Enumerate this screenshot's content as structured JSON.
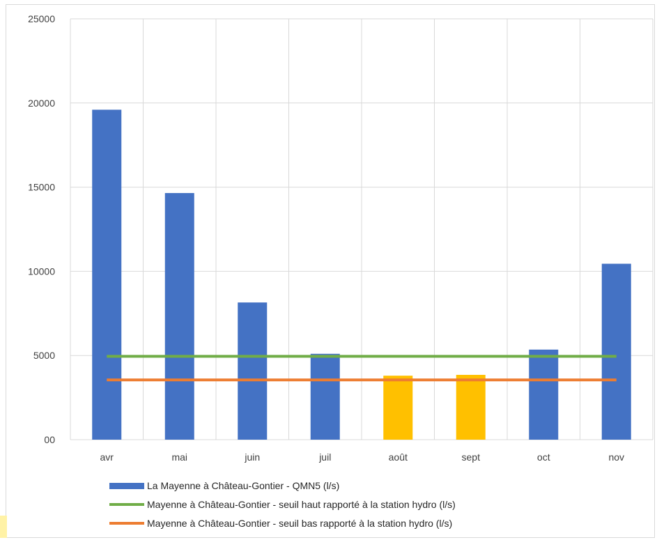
{
  "chart_data": {
    "type": "bar",
    "categories": [
      "avr",
      "mai",
      "juin",
      "juil",
      "août",
      "sept",
      "oct",
      "nov"
    ],
    "series": [
      {
        "name": "La Mayenne à Château-Gontier - QMN5 (l/s)",
        "type": "bar",
        "values": [
          19600,
          14650,
          8150,
          5100,
          3800,
          3850,
          5350,
          10450
        ],
        "colors": [
          "#4472C4",
          "#4472C4",
          "#4472C4",
          "#4472C4",
          "#FFC000",
          "#FFC000",
          "#4472C4",
          "#4472C4"
        ]
      },
      {
        "name": "Mayenne à Château-Gontier - seuil haut rapporté à la station hydro (l/s)",
        "type": "line",
        "values": [
          4950,
          4950,
          4950,
          4950,
          4950,
          4950,
          4950,
          4950
        ],
        "color": "#70AD47"
      },
      {
        "name": "Mayenne à Château-Gontier - seuil bas rapporté à la station hydro (l/s)",
        "type": "line",
        "values": [
          3550,
          3550,
          3550,
          3550,
          3550,
          3550,
          3550,
          3550
        ],
        "color": "#ED7D31"
      }
    ],
    "yticks": [
      "00",
      "5000",
      "10000",
      "15000",
      "20000",
      "25000"
    ],
    "ylim": [
      0,
      25000
    ],
    "grid": true,
    "legend_position": "bottom"
  }
}
